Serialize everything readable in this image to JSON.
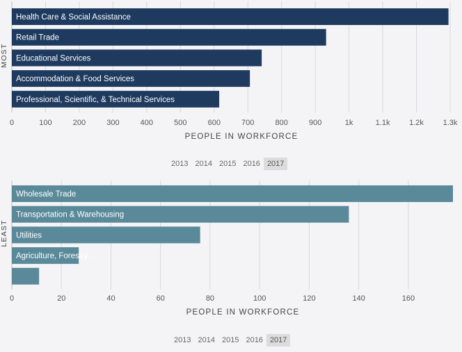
{
  "chart_data": [
    {
      "type": "bar",
      "orientation": "horizontal",
      "side_label": "MOST",
      "categories": [
        "Health Care & Social Assistance",
        "Retail Trade",
        "Educational Services",
        "Accommodation & Food Services",
        "Professional, Scientific, & Technical Services"
      ],
      "values": [
        1295,
        932,
        741,
        706,
        615
      ],
      "xlabel": "PEOPLE IN WORKFORCE",
      "xlim": [
        0,
        1300
      ],
      "ticks": [
        0,
        100,
        200,
        300,
        400,
        500,
        600,
        700,
        800,
        900,
        1000,
        1100,
        1200,
        1300
      ],
      "tick_labels": [
        "0",
        "100",
        "200",
        "300",
        "400",
        "500",
        "600",
        "700",
        "800",
        "900",
        "1k",
        "1.1k",
        "1.2k",
        "1.3k"
      ],
      "color": "#1e3a5f",
      "grid": true
    },
    {
      "type": "bar",
      "orientation": "horizontal",
      "side_label": "LEAST",
      "categories": [
        "Wholesale Trade",
        "Transportation & Warehousing",
        "Utilities",
        "Agriculture, Forestry...",
        ""
      ],
      "values": [
        178,
        136,
        76,
        27,
        11
      ],
      "xlabel": "PEOPLE IN WORKFORCE",
      "xlim": [
        0,
        178
      ],
      "ticks": [
        0,
        20,
        40,
        60,
        80,
        100,
        120,
        140,
        160
      ],
      "tick_labels": [
        "0",
        "20",
        "40",
        "60",
        "80",
        "100",
        "120",
        "140",
        "160"
      ],
      "color": "#5a8a9a",
      "grid": true
    }
  ],
  "year_selectors": [
    {
      "years": [
        "2013",
        "2014",
        "2015",
        "2016",
        "2017"
      ],
      "selected": "2017"
    },
    {
      "years": [
        "2013",
        "2014",
        "2015",
        "2016",
        "2017"
      ],
      "selected": "2017"
    }
  ]
}
